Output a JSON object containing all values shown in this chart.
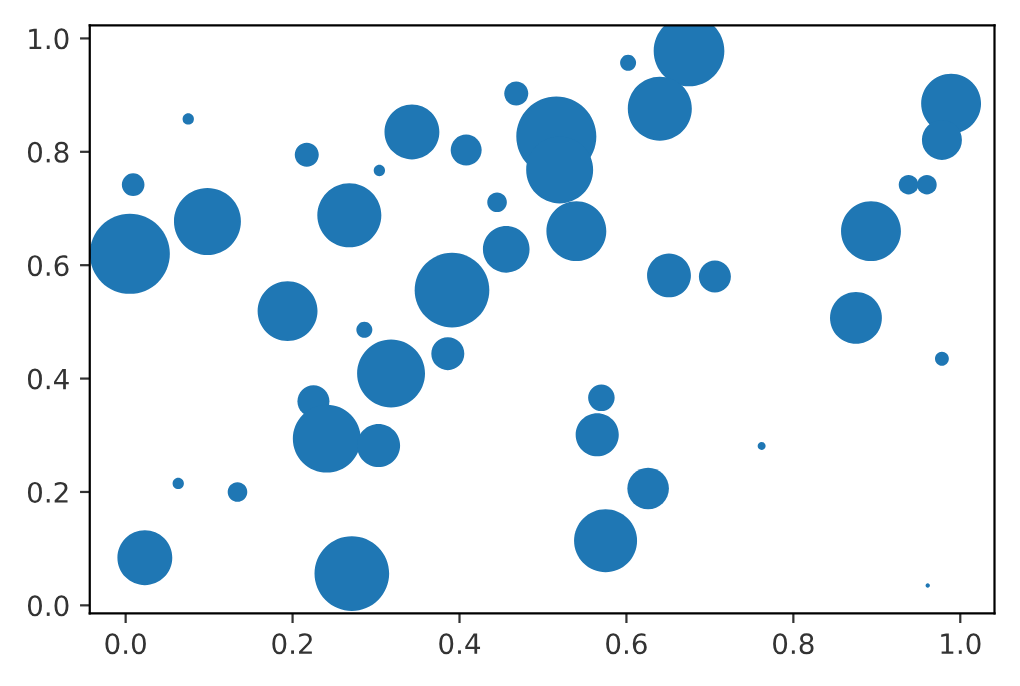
{
  "chart_data": {
    "type": "bubble",
    "x": [
      0.005,
      0.009,
      0.075,
      0.098,
      0.217,
      0.304,
      0.343,
      0.408,
      0.268,
      0.445,
      0.456,
      0.391,
      0.194,
      0.286,
      0.468,
      0.516,
      0.52,
      0.54,
      0.602,
      0.675,
      0.64,
      0.651,
      0.706,
      0.893,
      0.875,
      0.989,
      0.978,
      0.938,
      0.96,
      0.318,
      0.386,
      0.225,
      0.241,
      0.303,
      0.063,
      0.134,
      0.023,
      0.271,
      0.978,
      0.57,
      0.565,
      0.626,
      0.575,
      0.762,
      0.961
    ],
    "values": [
      0.62,
      0.742,
      0.858,
      0.677,
      0.795,
      0.767,
      0.835,
      0.803,
      0.688,
      0.711,
      0.628,
      0.556,
      0.519,
      0.486,
      0.903,
      0.827,
      0.768,
      0.66,
      0.957,
      0.978,
      0.876,
      0.582,
      0.58,
      0.66,
      0.507,
      0.885,
      0.821,
      0.742,
      0.742,
      0.409,
      0.444,
      0.36,
      0.294,
      0.282,
      0.215,
      0.2,
      0.084,
      0.056,
      0.435,
      0.366,
      0.301,
      0.206,
      0.114,
      0.281,
      0.035
    ],
    "sizes": [
      1.0,
      0.08,
      0.02,
      0.7,
      0.09,
      0.02,
      0.47,
      0.15,
      0.64,
      0.06,
      0.34,
      0.87,
      0.56,
      0.04,
      0.09,
      1.0,
      0.7,
      0.56,
      0.04,
      0.78,
      0.64,
      0.3,
      0.16,
      0.56,
      0.42,
      0.56,
      0.25,
      0.06,
      0.06,
      0.72,
      0.17,
      0.16,
      0.72,
      0.29,
      0.02,
      0.06,
      0.47,
      0.87,
      0.03,
      0.11,
      0.29,
      0.27,
      0.62,
      0.01,
      0.003
    ],
    "color": "#1f77b4",
    "xlim": [
      -0.043,
      1.041
    ],
    "ylim": [
      -0.014,
      1.023
    ],
    "xticks": [
      {
        "value": 0,
        "label": "0.0"
      },
      {
        "value": 0.2,
        "label": "0.2"
      },
      {
        "value": 0.4,
        "label": "0.4"
      },
      {
        "value": 0.6,
        "label": "0.6"
      },
      {
        "value": 0.8,
        "label": "0.8"
      },
      {
        "value": 1,
        "label": "1.0"
      }
    ],
    "yticks": [
      {
        "value": 0,
        "label": "0.0"
      },
      {
        "value": 0.2,
        "label": "0.2"
      },
      {
        "value": 0.4,
        "label": "0.4"
      },
      {
        "value": 0.6,
        "label": "0.6"
      },
      {
        "value": 0.8,
        "label": "0.8"
      },
      {
        "value": 1,
        "label": "1.0"
      }
    ]
  }
}
